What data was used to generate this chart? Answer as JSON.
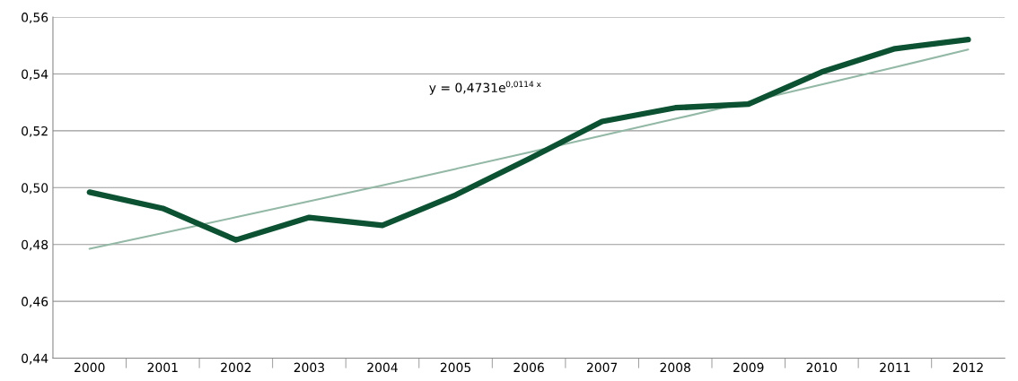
{
  "chart_data": {
    "type": "line",
    "categories": [
      "2000",
      "2001",
      "2002",
      "2003",
      "2004",
      "2005",
      "2006",
      "2007",
      "2008",
      "2009",
      "2010",
      "2011",
      "2012"
    ],
    "series": [
      {
        "color": "#0b5132",
        "values": [
          0.4984,
          0.4927,
          0.4816,
          0.4895,
          0.4867,
          0.4974,
          0.5101,
          0.5233,
          0.5281,
          0.5294,
          0.5407,
          0.5489,
          0.5521
        ]
      },
      {
        "color": "#93b8a6",
        "values": [
          0.4785,
          0.484,
          0.4896,
          0.4952,
          0.5008,
          0.5066,
          0.5124,
          0.5183,
          0.5242,
          0.5302,
          0.5363,
          0.5424,
          0.5486
        ]
      }
    ],
    "ylim": [
      0.44,
      0.56
    ],
    "yticks": [
      {
        "value": 0.44,
        "label": "0,44"
      },
      {
        "value": 0.46,
        "label": "0,46"
      },
      {
        "value": 0.48,
        "label": "0,48"
      },
      {
        "value": 0.5,
        "label": "0,50"
      },
      {
        "value": 0.52,
        "label": "0,52"
      },
      {
        "value": 0.54,
        "label": "0,54"
      },
      {
        "value": 0.56,
        "label": "0,56"
      }
    ],
    "annotations": [
      "y = 0,4731e$^{0,0114 x}$"
    ],
    "grid": "y",
    "legend": false,
    "marker": "none",
    "line_style": "solid"
  }
}
